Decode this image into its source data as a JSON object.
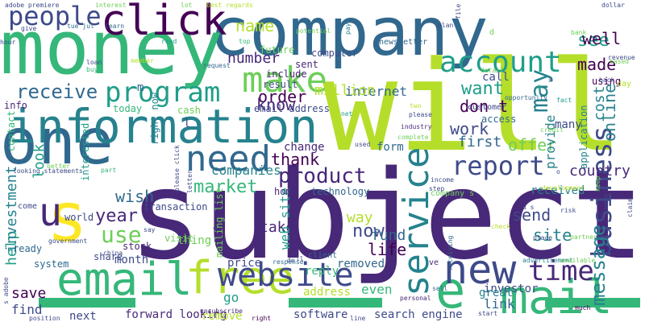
{
  "palette": {
    "dark_purple": "#440154",
    "indigo": "#482878",
    "blue": "#3e4a89",
    "steel_blue": "#31688e",
    "teal": "#26828e",
    "cyan_green": "#1f9e89",
    "green": "#35b779",
    "light_green": "#6ece58",
    "lime": "#b5de2b",
    "yellow": "#fde725"
  },
  "words": [
    {
      "text": "subject",
      "color": "#482878"
    },
    {
      "text": "will",
      "color": "#b5de2b"
    },
    {
      "text": "company",
      "color": "#31688e"
    },
    {
      "text": "money",
      "color": "#35b779"
    },
    {
      "text": "one",
      "color": "#31688e"
    },
    {
      "text": "information",
      "color": "#26828e"
    },
    {
      "text": "click",
      "color": "#440154"
    },
    {
      "text": "email",
      "color": "#35b779"
    },
    {
      "text": "free",
      "color": "#b5de2b"
    },
    {
      "text": "mail",
      "color": "#35b779"
    },
    {
      "text": "e",
      "color": "#35b779"
    },
    {
      "text": "new",
      "color": "#3e4a89"
    },
    {
      "text": "website",
      "color": "#3e4a89"
    },
    {
      "text": "s",
      "color": "#fde725"
    },
    {
      "text": "u",
      "color": "#482878"
    },
    {
      "text": "make",
      "color": "#6ece58"
    },
    {
      "text": "program",
      "color": "#1f9e89"
    },
    {
      "text": "account",
      "color": "#1f9e89"
    },
    {
      "text": "report",
      "color": "#3e4a89"
    },
    {
      "text": "need",
      "color": "#31688e"
    },
    {
      "text": "service",
      "color": "#26828e"
    },
    {
      "text": "business",
      "color": "#3e4a89"
    },
    {
      "text": "time",
      "color": "#482878"
    },
    {
      "text": "message",
      "color": "#26828e"
    },
    {
      "text": "people",
      "color": "#3e4a89"
    },
    {
      "text": "product",
      "color": "#482878"
    },
    {
      "text": "receive",
      "color": "#31688e"
    },
    {
      "text": "use",
      "color": "#6ece58"
    },
    {
      "text": "may",
      "color": "#26828e"
    },
    {
      "text": "order",
      "color": "#440154"
    },
    {
      "text": "want",
      "color": "#1f9e89"
    },
    {
      "text": "know",
      "color": "#482878"
    },
    {
      "text": "don t",
      "color": "#440154"
    },
    {
      "text": "work",
      "color": "#3e4a89"
    },
    {
      "text": "offer",
      "color": "#6ece58"
    },
    {
      "text": "made",
      "color": "#440154"
    },
    {
      "text": "see",
      "color": "#1f9e89"
    },
    {
      "text": "well",
      "color": "#440154"
    },
    {
      "text": "name",
      "color": "#b5de2b"
    },
    {
      "text": "number",
      "color": "#482878"
    },
    {
      "text": "online",
      "color": "#26828e"
    },
    {
      "text": "provide",
      "color": "#26828e"
    },
    {
      "text": "first",
      "color": "#31688e"
    },
    {
      "text": "market",
      "color": "#35b779"
    },
    {
      "text": "companies",
      "color": "#26828e"
    },
    {
      "text": "thank",
      "color": "#440154"
    },
    {
      "text": "country",
      "color": "#482878"
    },
    {
      "text": "year",
      "color": "#482878"
    },
    {
      "text": "wish",
      "color": "#31688e"
    },
    {
      "text": "send",
      "color": "#3e4a89"
    },
    {
      "text": "site",
      "color": "#26828e"
    },
    {
      "text": "now",
      "color": "#3e4a89"
    },
    {
      "text": "way",
      "color": "#b5de2b"
    },
    {
      "text": "life",
      "color": "#440154"
    },
    {
      "text": "fund",
      "color": "#31688e"
    },
    {
      "text": "take",
      "color": "#482878"
    },
    {
      "text": "web site",
      "color": "#1f9e89"
    },
    {
      "text": "internet",
      "color": "#31688e"
    },
    {
      "text": "million",
      "color": "#b5de2b"
    },
    {
      "text": "look",
      "color": "#1f9e89"
    },
    {
      "text": "cost",
      "color": "#26828e"
    },
    {
      "text": "find",
      "color": "#3e4a89"
    },
    {
      "text": "save",
      "color": "#440154"
    },
    {
      "text": "help",
      "color": "#1f9e89"
    },
    {
      "text": "investment",
      "color": "#26828e"
    },
    {
      "text": "even",
      "color": "#35b779"
    },
    {
      "text": "link",
      "color": "#31688e"
    },
    {
      "text": "go",
      "color": "#1f9e89"
    },
    {
      "text": "next",
      "color": "#3e4a89"
    },
    {
      "text": "software",
      "color": "#3e4a89"
    },
    {
      "text": "forward looking",
      "color": "#482878"
    },
    {
      "text": "search engine",
      "color": "#3e4a89"
    },
    {
      "text": "remove",
      "color": "#b5de2b"
    },
    {
      "text": "thing",
      "color": "#6ece58"
    },
    {
      "text": "month",
      "color": "#3e4a89"
    },
    {
      "text": "price",
      "color": "#3e4a89"
    },
    {
      "text": "investor",
      "color": "#3e4a89"
    },
    {
      "text": "great",
      "color": "#26828e"
    },
    {
      "text": "address",
      "color": "#b5de2b"
    },
    {
      "text": "removed",
      "color": "#31688e"
    },
    {
      "text": "reply",
      "color": "#35b779"
    },
    {
      "text": "technology",
      "color": "#31688e"
    },
    {
      "text": "received",
      "color": "#26828e"
    },
    {
      "text": "form",
      "color": "#31688e"
    },
    {
      "text": "change",
      "color": "#482878"
    },
    {
      "text": "email address",
      "color": "#3e4a89"
    },
    {
      "text": "result",
      "color": "#3e4a89"
    },
    {
      "text": "future",
      "color": "#6ece58"
    },
    {
      "text": "include",
      "color": "#482878"
    },
    {
      "text": "call",
      "color": "#3e4a89"
    },
    {
      "text": "access",
      "color": "#31688e"
    },
    {
      "text": "many",
      "color": "#3e4a89"
    },
    {
      "text": "using",
      "color": "#440154"
    },
    {
      "text": "application",
      "color": "#26828e"
    },
    {
      "text": "info",
      "color": "#482878"
    },
    {
      "text": "today",
      "color": "#35b779"
    },
    {
      "text": "cash",
      "color": "#6ece58"
    },
    {
      "text": "stock",
      "color": "#482878"
    },
    {
      "text": "transaction",
      "color": "#3e4a89"
    },
    {
      "text": "share",
      "color": "#3e4a89"
    },
    {
      "text": "system",
      "color": "#31688e"
    },
    {
      "text": "visit",
      "color": "#6ece58"
    },
    {
      "text": "computer",
      "color": "#3e4a89"
    },
    {
      "text": "sent",
      "color": "#482878"
    },
    {
      "text": "right now",
      "color": "#26828e"
    },
    {
      "text": "interested",
      "color": "#1f9e89"
    },
    {
      "text": "contact",
      "color": "#35b779"
    },
    {
      "text": "mailing list",
      "color": "#6ece58"
    },
    {
      "text": "world",
      "color": "#3e4a89"
    },
    {
      "text": "come",
      "color": "#3e4a89"
    },
    {
      "text": "ready",
      "color": "#31688e"
    },
    {
      "text": "client",
      "color": "#31688e"
    },
    {
      "text": "home",
      "color": "#482878"
    },
    {
      "text": "newsletter",
      "color": "#31688e"
    },
    {
      "text": "company s",
      "color": "#6ece58"
    },
    {
      "text": "please click",
      "color": "#3e4a89"
    },
    {
      "text": "ve",
      "color": "#482878"
    },
    {
      "text": "l",
      "color": "#3e4a89"
    },
    {
      "text": "m",
      "color": "#31688e"
    },
    {
      "text": "adobe premiere",
      "color": "#3e4a89"
    },
    {
      "text": "interest",
      "color": "#6ece58"
    },
    {
      "text": "lot",
      "color": "#6ece58"
    },
    {
      "text": "best regards",
      "color": "#b5de2b"
    },
    {
      "text": "dollar",
      "color": "#3e4a89"
    },
    {
      "text": "day",
      "color": "#b5de2b"
    },
    {
      "text": "give",
      "color": "#3e4a89"
    },
    {
      "text": "tue jul",
      "color": "#31688e"
    },
    {
      "text": "learn",
      "color": "#31688e"
    },
    {
      "text": "hour",
      "color": "#3e4a89"
    },
    {
      "text": "read",
      "color": "#1f9e89"
    },
    {
      "text": "top",
      "color": "#35b779"
    },
    {
      "text": "plan",
      "color": "#3e4a89"
    },
    {
      "text": "pay",
      "color": "#26828e"
    },
    {
      "text": "potential",
      "color": "#6ece58"
    },
    {
      "text": "revenue",
      "color": "#3e4a89"
    },
    {
      "text": "bank",
      "color": "#6ece58"
    },
    {
      "text": "loan",
      "color": "#3e4a89"
    },
    {
      "text": "buy",
      "color": "#35b779"
    },
    {
      "text": "member",
      "color": "#b5de2b"
    },
    {
      "text": "request",
      "color": "#31688e"
    },
    {
      "text": "detail",
      "color": "#6ece58"
    },
    {
      "text": "based",
      "color": "#6ece58"
    },
    {
      "text": "opportunity",
      "color": "#31688e"
    },
    {
      "text": "back",
      "color": "#3e4a89"
    },
    {
      "text": "fact",
      "color": "#1f9e89"
    },
    {
      "text": "credit",
      "color": "#6ece58"
    },
    {
      "text": "industry",
      "color": "#482878"
    },
    {
      "text": "please",
      "color": "#3e4a89"
    },
    {
      "text": "net",
      "color": "#1f9e89"
    },
    {
      "text": "complete",
      "color": "#6ece58"
    },
    {
      "text": "used",
      "color": "#3e4a89"
    },
    {
      "text": "better",
      "color": "#6ece58"
    },
    {
      "text": "part",
      "color": "#35b779"
    },
    {
      "text": "looking statements",
      "color": "#3e4a89"
    },
    {
      "text": "government",
      "color": "#3e4a89"
    },
    {
      "text": "china",
      "color": "#3e4a89"
    },
    {
      "text": "say",
      "color": "#3e4a89"
    },
    {
      "text": "letter",
      "color": "#3e4a89"
    },
    {
      "text": "income",
      "color": "#3e4a89"
    },
    {
      "text": "development",
      "color": "#b5de2b"
    },
    {
      "text": "check",
      "color": "#b5de2b"
    },
    {
      "text": "risk",
      "color": "#3e4a89"
    },
    {
      "text": "keep",
      "color": "#6ece58"
    },
    {
      "text": "week",
      "color": "#3e4a89"
    },
    {
      "text": "claim",
      "color": "#3e4a89"
    },
    {
      "text": "partner",
      "color": "#6ece58"
    },
    {
      "text": "place",
      "color": "#3e4a89"
    },
    {
      "text": "advertisement",
      "color": "#26828e"
    },
    {
      "text": "receiving",
      "color": "#31688e"
    },
    {
      "text": "available",
      "color": "#6ece58"
    },
    {
      "text": "sell",
      "color": "#31688e"
    },
    {
      "text": "personal",
      "color": "#482878"
    },
    {
      "text": "start",
      "color": "#3e4a89"
    },
    {
      "text": "much",
      "color": "#440154"
    },
    {
      "text": "unsubscribe",
      "color": "#482878"
    },
    {
      "text": "right",
      "color": "#440154"
    },
    {
      "text": "line",
      "color": "#3e4a89"
    },
    {
      "text": "de",
      "color": "#3e4a89"
    },
    {
      "text": "ll",
      "color": "#3e4a89"
    },
    {
      "text": "response",
      "color": "#31688e"
    },
    {
      "text": "position",
      "color": "#3e4a89"
    },
    {
      "text": "s adobe",
      "color": "#3e4a89"
    },
    {
      "text": "v",
      "color": "#3e4a89"
    },
    {
      "text": "d",
      "color": "#6ece58"
    },
    {
      "text": "customer",
      "color": "#3e4a89"
    },
    {
      "text": "file",
      "color": "#3e4a89"
    },
    {
      "text": "g",
      "color": "#35b779"
    },
    {
      "text": "two",
      "color": "#b5de2b"
    },
    {
      "text": "o",
      "color": "#3e4a89"
    },
    {
      "text": "x",
      "color": "#3e4a89"
    },
    {
      "text": "step",
      "color": "#3e4a89"
    },
    {
      "text": "u s",
      "color": "#3e4a89"
    }
  ],
  "bars": [
    {
      "color": "#35b779"
    },
    {
      "color": "#35b779"
    },
    {
      "color": "#35b779"
    }
  ]
}
